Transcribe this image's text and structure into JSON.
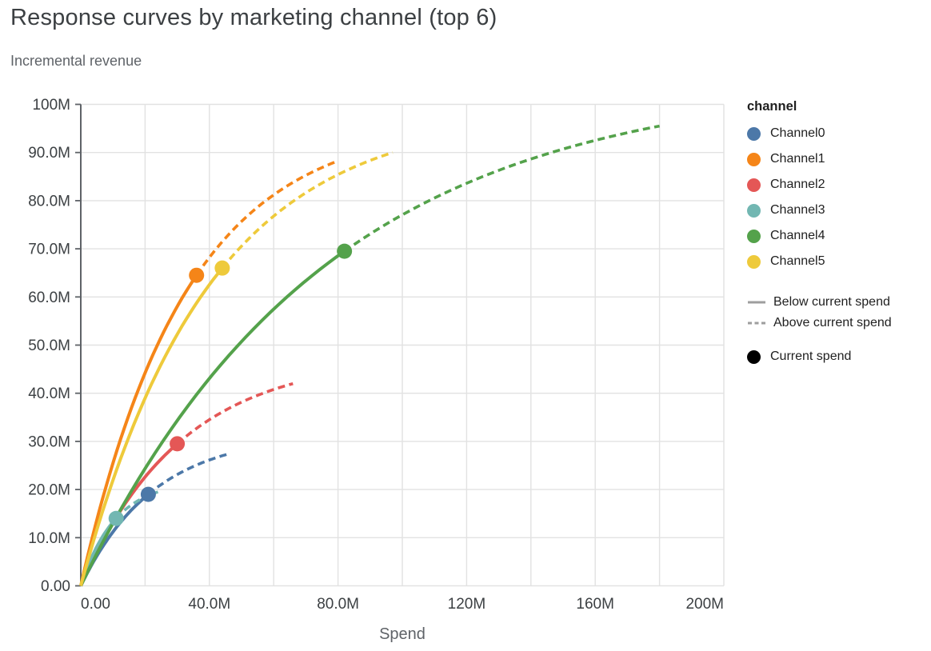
{
  "page": {
    "title": "Response curves by marketing channel (top 6)",
    "subtitle": "Incremental revenue"
  },
  "legend": {
    "header": "channel",
    "line_colors": "#9e9e9e",
    "point_color": "#000000"
  },
  "chart_data": {
    "type": "line",
    "title": "Response curves by marketing channel (top 6)",
    "subtitle": "Incremental revenue",
    "xlabel": "Spend",
    "ylabel": "Incremental revenue",
    "xlim_millions": [
      0,
      200
    ],
    "ylim_millions": [
      0,
      100
    ],
    "x_tick_values_millions": [
      0,
      40,
      80,
      120,
      160,
      200
    ],
    "x_tick_labels": [
      "0.00",
      "40.0M",
      "80.0M",
      "120M",
      "160M",
      "200M"
    ],
    "x_minor_grid_step_millions": 20,
    "y_tick_values_millions": [
      0,
      10,
      20,
      30,
      40,
      50,
      60,
      70,
      80,
      90,
      100
    ],
    "y_tick_labels": [
      "0.00",
      "10.0M",
      "20.0M",
      "30.0M",
      "40.0M",
      "50.0M",
      "60.0M",
      "70.0M",
      "80.0M",
      "90.0M",
      "100M"
    ],
    "grid": true,
    "legend_position": "right",
    "grid_color": "#e2e2e2",
    "axis_color": "#5f6368",
    "series": [
      {
        "name": "Channel0",
        "color": "#4c78a8",
        "current_spend_m": 21,
        "current_revenue_m": 19,
        "max_spend_m": 46.5,
        "max_revenue_m": 27.5
      },
      {
        "name": "Channel1",
        "color": "#f58518",
        "current_spend_m": 36,
        "current_revenue_m": 64.5,
        "max_spend_m": 79,
        "max_revenue_m": 88
      },
      {
        "name": "Channel2",
        "color": "#e45756",
        "current_spend_m": 30,
        "current_revenue_m": 29.5,
        "max_spend_m": 66,
        "max_revenue_m": 42
      },
      {
        "name": "Channel3",
        "color": "#72b7b2",
        "current_spend_m": 11,
        "current_revenue_m": 14,
        "max_spend_m": 24,
        "max_revenue_m": 19.5
      },
      {
        "name": "Channel4",
        "color": "#54a24b",
        "current_spend_m": 82,
        "current_revenue_m": 69.5,
        "max_spend_m": 180,
        "max_revenue_m": 95.5
      },
      {
        "name": "Channel5",
        "color": "#eeca3b",
        "current_spend_m": 44,
        "current_revenue_m": 66,
        "max_spend_m": 97,
        "max_revenue_m": 90
      }
    ],
    "line_styles": [
      {
        "label": "Below current spend",
        "style": "solid"
      },
      {
        "label": "Above current spend",
        "style": "dashed"
      }
    ],
    "point_legend": {
      "label": "Current spend"
    }
  }
}
